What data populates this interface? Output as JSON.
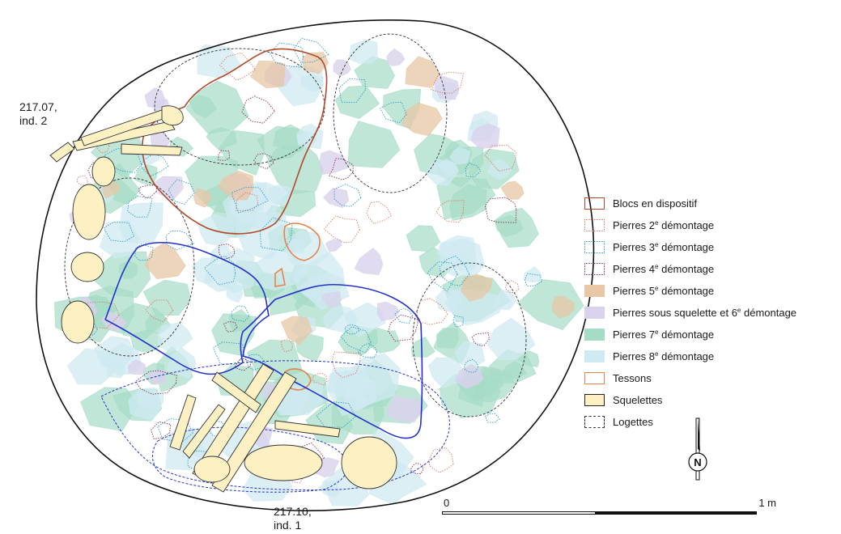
{
  "labels": {
    "individual_a": [
      "217.07,",
      "ind. 2"
    ],
    "individual_b": [
      "217.10,",
      "ind. 1"
    ]
  },
  "legend": [
    {
      "text": "Blocs en dispositif",
      "sup": "",
      "rest": "",
      "style": "solid",
      "stroke": "#b04a2a",
      "fill": "none"
    },
    {
      "text": "Pierres 2",
      "sup": "e",
      "rest": " démontage",
      "style": "dotted",
      "stroke": "#e0786a",
      "fill": "none"
    },
    {
      "text": "Pierres 3",
      "sup": "e",
      "rest": " démontage",
      "style": "dotted",
      "stroke": "#2a9ec8",
      "fill": "none"
    },
    {
      "text": "Pierres 4",
      "sup": "e",
      "rest": " démontage",
      "style": "dotted",
      "stroke": "#8a2a5a",
      "fill": "none"
    },
    {
      "text": "Pierres 5",
      "sup": "e",
      "rest": " démontage",
      "style": "none",
      "stroke": "none",
      "fill": "#e7c7a5"
    },
    {
      "text": "Pierres sous squelette et 6",
      "sup": "e",
      "rest": " démontage",
      "style": "none",
      "stroke": "none",
      "fill": "#d9d2ec"
    },
    {
      "text": "Pierres 7",
      "sup": "e",
      "rest": " démontage",
      "style": "none",
      "stroke": "none",
      "fill": "#a5dcc6"
    },
    {
      "text": "Pierres 8",
      "sup": "e",
      "rest": " démontage",
      "style": "none",
      "stroke": "none",
      "fill": "#cfeaf2"
    },
    {
      "text": "Tessons",
      "sup": "",
      "rest": "",
      "style": "solid",
      "stroke": "#e8824a",
      "fill": "none"
    },
    {
      "text": "Squelettes",
      "sup": "",
      "rest": "",
      "style": "solid",
      "stroke": "#222222",
      "fill": "#fdf0c2"
    },
    {
      "text": "Logettes",
      "sup": "",
      "rest": "",
      "style": "dashed",
      "stroke": "#333333",
      "fill": "none"
    }
  ],
  "scale": {
    "start": "0",
    "end": "1 m"
  },
  "north": "N",
  "colors": {
    "pit": "#111111",
    "blocs": "#b04a2a",
    "pierres2": "#e0786a",
    "pierres3": "#2a9ec8",
    "pierres4": "#8a2a5a",
    "pierres5": "#e7c7a5",
    "pierres6": "#d9d2ec",
    "pierres7": "#a5dcc6",
    "pierres8": "#cfeaf2",
    "tessons": "#e8824a",
    "squelettes": "#fdf0c2",
    "blue_outline": "#2233cc"
  }
}
